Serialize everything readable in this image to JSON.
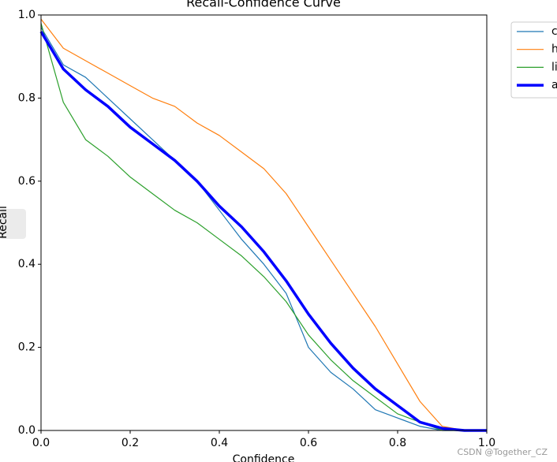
{
  "chart_data": {
    "type": "line",
    "title": "Recall-Confidence Curve",
    "xlabel": "Confidence",
    "ylabel": "Recall",
    "watermark": "CSDN @Together_CZ",
    "x": [
      0,
      0.05,
      0.1,
      0.15,
      0.2,
      0.25,
      0.3,
      0.35,
      0.4,
      0.45,
      0.5,
      0.55,
      0.6,
      0.65,
      0.7,
      0.75,
      0.8,
      0.85,
      0.9,
      0.95,
      1.0
    ],
    "series": [
      {
        "name": "c",
        "color": "#1f77b4",
        "width": 1.2,
        "values": [
          0.97,
          0.88,
          0.85,
          0.8,
          0.75,
          0.7,
          0.65,
          0.6,
          0.53,
          0.46,
          0.4,
          0.33,
          0.2,
          0.14,
          0.1,
          0.05,
          0.03,
          0.01,
          0,
          0,
          0
        ]
      },
      {
        "name": "h",
        "color": "#ff7f0e",
        "width": 1.2,
        "values": [
          0.99,
          0.92,
          0.89,
          0.86,
          0.83,
          0.8,
          0.78,
          0.74,
          0.71,
          0.67,
          0.63,
          0.57,
          0.49,
          0.41,
          0.33,
          0.25,
          0.16,
          0.07,
          0.01,
          0,
          0
        ]
      },
      {
        "name": "li",
        "color": "#2ca02c",
        "width": 1.2,
        "values": [
          0.98,
          0.79,
          0.7,
          0.66,
          0.61,
          0.57,
          0.53,
          0.5,
          0.46,
          0.42,
          0.37,
          0.31,
          0.23,
          0.17,
          0.12,
          0.08,
          0.04,
          0.02,
          0,
          0,
          0
        ]
      },
      {
        "name": "a",
        "color": "#0000ff",
        "width": 3.5,
        "values": [
          0.96,
          0.87,
          0.82,
          0.78,
          0.73,
          0.69,
          0.65,
          0.6,
          0.54,
          0.49,
          0.43,
          0.36,
          0.28,
          0.21,
          0.15,
          0.1,
          0.06,
          0.02,
          0.005,
          0,
          0
        ]
      }
    ],
    "xlim": [
      0,
      1.0
    ],
    "ylim": [
      0,
      1.0
    ],
    "xticks": [
      {
        "value": 0,
        "label": "0.0"
      },
      0.2,
      0.4,
      0.6,
      0.8,
      {
        "value": 1,
        "label": "1.0"
      }
    ],
    "yticks": [
      {
        "value": 0,
        "label": "0.0"
      },
      0.2,
      0.4,
      0.6,
      0.8,
      {
        "value": 1,
        "label": "1.0"
      }
    ],
    "legend": "outside-right"
  }
}
